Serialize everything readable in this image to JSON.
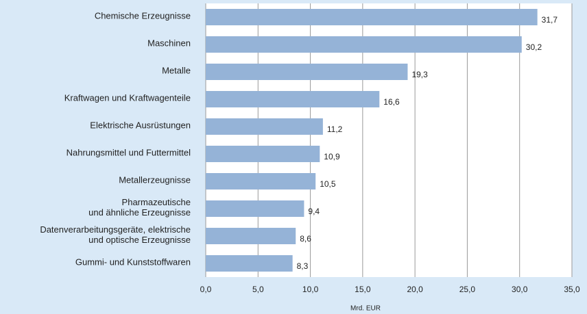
{
  "chart_data": {
    "type": "bar",
    "orientation": "horizontal",
    "categories": [
      "Chemische Erzeugnisse",
      "Maschinen",
      "Metalle",
      "Kraftwagen und Kraftwagenteile",
      "Elektrische Ausrüstungen",
      "Nahrungsmittel und Futtermittel",
      "Metallerzeugnisse",
      "Pharmazeutische\nund ähnliche Erzeugnisse",
      "Datenverarbeitungsgeräte, elektrische\nund optische Erzeugnisse",
      "Gummi- und Kunststoffwaren"
    ],
    "values": [
      31.7,
      30.2,
      19.3,
      16.6,
      11.2,
      10.9,
      10.5,
      9.4,
      8.6,
      8.3
    ],
    "value_labels": [
      "31,7",
      "30,2",
      "19,3",
      "16,6",
      "11,2",
      "10,9",
      "10,5",
      "9,4",
      "8,6",
      "8,3"
    ],
    "color": "#95b3d7",
    "xlabel": "Mrd. EUR",
    "xlim": [
      0,
      35
    ],
    "xticks": [
      {
        "value": 0,
        "label": "0,0"
      },
      {
        "value": 5,
        "label": "5,0"
      },
      {
        "value": 10,
        "label": "10,0"
      },
      {
        "value": 15,
        "label": "15,0"
      },
      {
        "value": 20,
        "label": "20,0"
      },
      {
        "value": 25,
        "label": "25,0"
      },
      {
        "value": 30,
        "label": "30,0"
      },
      {
        "value": 35,
        "label": "35,0"
      }
    ],
    "grid": true
  }
}
